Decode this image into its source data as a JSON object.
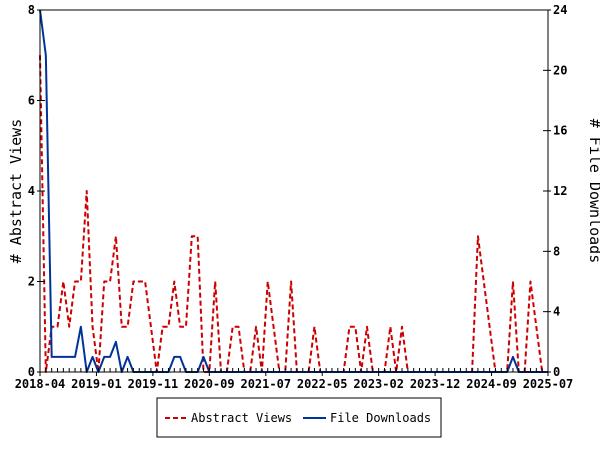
{
  "chart_data": {
    "type": "line",
    "title": "",
    "xlabel": "",
    "ylabel_left": "# Abstract Views",
    "ylabel_right": "# File Downloads",
    "x_tick_labels": [
      "2018-04",
      "2019-01",
      "2019-11",
      "2020-09",
      "2021-07",
      "2022-05",
      "2023-02",
      "2023-12",
      "2024-09",
      "2025-07"
    ],
    "xlim": [
      0,
      87
    ],
    "ylim_left": [
      0,
      8
    ],
    "ylim_right": [
      0,
      24
    ],
    "y_ticks_left": [
      "0",
      "2",
      "4",
      "6",
      "8"
    ],
    "y_ticks_right": [
      "0",
      "4",
      "8",
      "12",
      "16",
      "20",
      "24"
    ],
    "legend_position": "bottom-center",
    "series": [
      {
        "name": "Abstract Views",
        "axis": "left",
        "color": "#cc0000",
        "style": "dashed",
        "values": [
          7,
          0,
          1,
          1,
          2,
          1,
          2,
          2,
          4,
          1,
          0,
          2,
          2,
          3,
          1,
          1,
          2,
          2,
          2,
          1,
          0,
          1,
          1,
          2,
          1,
          1,
          3,
          3,
          0,
          0,
          2,
          0,
          0,
          1,
          1,
          0,
          0,
          1,
          0,
          2,
          1,
          0,
          0,
          2,
          0,
          0,
          0,
          1,
          0,
          0,
          0,
          0,
          0,
          1,
          1,
          0,
          1,
          0,
          0,
          0,
          1,
          0,
          1,
          0,
          0,
          0,
          0,
          0,
          0,
          0,
          0,
          0,
          0,
          0,
          0,
          3,
          2,
          1,
          0,
          0,
          0,
          2,
          0,
          0,
          2,
          1,
          0,
          0
        ]
      },
      {
        "name": "File Downloads",
        "axis": "right",
        "color": "#003399",
        "style": "solid",
        "values": [
          24,
          21,
          1,
          1,
          1,
          1,
          1,
          3,
          0,
          1,
          0,
          1,
          1,
          2,
          0,
          1,
          0,
          0,
          0,
          0,
          0,
          0,
          0,
          1,
          1,
          0,
          0,
          0,
          1,
          0,
          0,
          0,
          0,
          0,
          0,
          0,
          0,
          0,
          0,
          0,
          0,
          0,
          0,
          0,
          0,
          0,
          0,
          0,
          0,
          0,
          0,
          0,
          0,
          0,
          0,
          0,
          0,
          0,
          0,
          0,
          0,
          0,
          0,
          0,
          0,
          0,
          0,
          0,
          0,
          0,
          0,
          0,
          0,
          0,
          0,
          0,
          0,
          0,
          0,
          0,
          0,
          1,
          0,
          0,
          0,
          0,
          0,
          0
        ]
      }
    ]
  }
}
